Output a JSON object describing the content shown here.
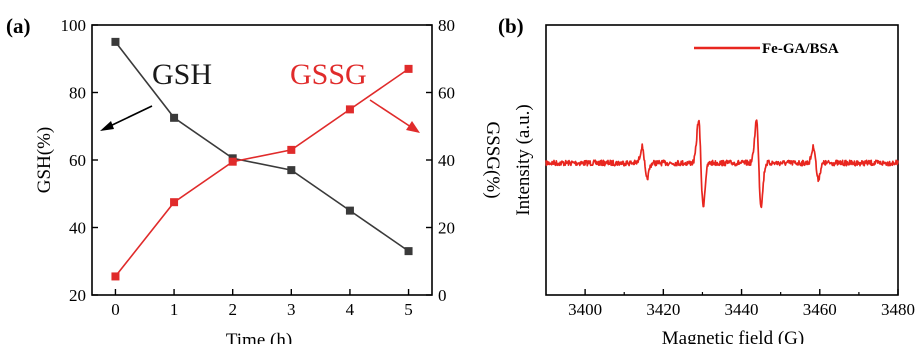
{
  "colors": {
    "gsh": "#3a3a3a",
    "gssg": "#e02b2b",
    "epr": "#e8261f",
    "axis": "#000000"
  },
  "panel_a": {
    "label": "(a)"
  },
  "panel_b": {
    "label": "(b)"
  },
  "chart_data": [
    {
      "type": "line",
      "panel": "(a)",
      "xlabel": "Time (h)",
      "ylabel": "GSH(%)",
      "y2label": "GSSG(%)",
      "xlim": [
        -0.4,
        5.4
      ],
      "ylim": [
        20,
        100
      ],
      "y2lim": [
        0,
        80
      ],
      "x_ticks": [
        0,
        1,
        2,
        3,
        4,
        5
      ],
      "y_ticks": [
        20,
        40,
        60,
        80,
        100
      ],
      "y2_ticks": [
        0,
        20,
        40,
        60,
        80
      ],
      "x_tick_labels": [
        "0",
        "1",
        "2",
        "3",
        "4",
        "5"
      ],
      "y_tick_labels": [
        "20",
        "40",
        "60",
        "80",
        "100"
      ],
      "y2_tick_labels": [
        "0",
        "20",
        "40",
        "60",
        "80"
      ],
      "annotations": [
        "GSH",
        "GSSG"
      ],
      "series": [
        {
          "name": "GSH",
          "axis": "left",
          "marker": "square",
          "color": "#3a3a3a",
          "x": [
            0,
            1,
            2,
            3,
            4,
            5
          ],
          "values": [
            95,
            72.5,
            60.5,
            57,
            45,
            33
          ]
        },
        {
          "name": "GSSG",
          "axis": "right",
          "marker": "square",
          "color": "#e02b2b",
          "x": [
            0,
            1,
            2,
            3,
            4,
            5
          ],
          "values": [
            5.5,
            27.5,
            39.5,
            43,
            55,
            67
          ]
        }
      ]
    },
    {
      "type": "line",
      "panel": "(b)",
      "xlabel": "Magnetic field (G)",
      "ylabel": "Intensity (a.u.)",
      "xlim": [
        3390,
        3480
      ],
      "x_ticks": [
        3400,
        3420,
        3440,
        3460,
        3480
      ],
      "x_tick_labels": [
        "3400",
        "3420",
        "3440",
        "3460",
        "3480"
      ],
      "legend_position": "top-right",
      "series": [
        {
          "name": "Fe-GA/BSA",
          "color": "#e8261f"
        }
      ]
    }
  ]
}
